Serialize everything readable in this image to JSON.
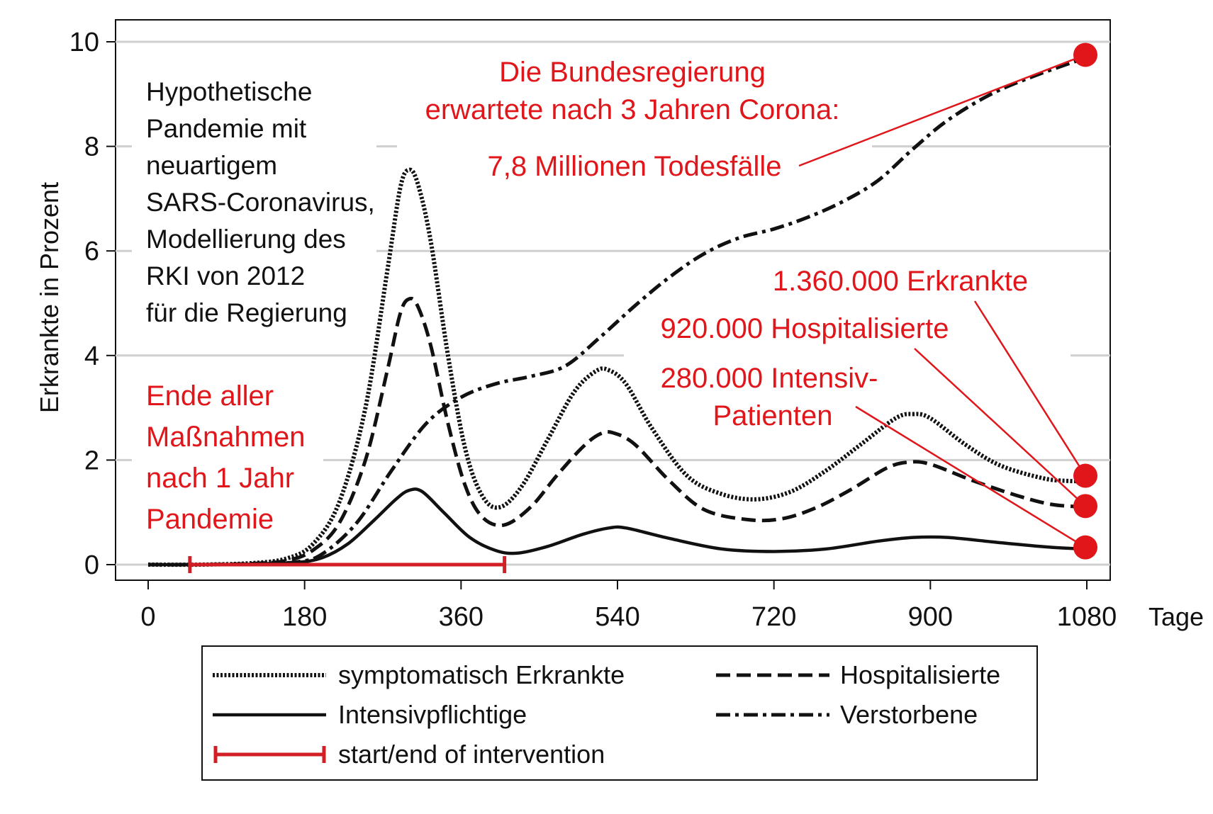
{
  "chart_data": {
    "type": "line",
    "ylabel": "Erkrankte in Prozent",
    "xlabel": "Tage",
    "xlim": [
      0,
      1080
    ],
    "ylim": [
      0,
      10
    ],
    "xticks": [
      "0",
      "180",
      "360",
      "540",
      "720",
      "900",
      "1080"
    ],
    "yticks": [
      "0",
      "2",
      "4",
      "6",
      "8",
      "10"
    ],
    "grid": "horizontal",
    "legend_position": "bottom",
    "series": [
      {
        "name": "symptomatisch Erkrankte",
        "style": "dotted",
        "color": "#111111",
        "points": [
          [
            0,
            0
          ],
          [
            60,
            0
          ],
          [
            120,
            0.03
          ],
          [
            160,
            0.12
          ],
          [
            190,
            0.4
          ],
          [
            220,
            1.2
          ],
          [
            250,
            3.0
          ],
          [
            275,
            5.6
          ],
          [
            290,
            7.2
          ],
          [
            300,
            7.55
          ],
          [
            310,
            7.3
          ],
          [
            325,
            6.2
          ],
          [
            345,
            4.0
          ],
          [
            365,
            2.2
          ],
          [
            385,
            1.3
          ],
          [
            405,
            1.1
          ],
          [
            430,
            1.5
          ],
          [
            460,
            2.4
          ],
          [
            490,
            3.3
          ],
          [
            515,
            3.7
          ],
          [
            530,
            3.72
          ],
          [
            550,
            3.45
          ],
          [
            580,
            2.6
          ],
          [
            620,
            1.7
          ],
          [
            660,
            1.35
          ],
          [
            700,
            1.25
          ],
          [
            740,
            1.4
          ],
          [
            780,
            1.8
          ],
          [
            820,
            2.3
          ],
          [
            860,
            2.8
          ],
          [
            880,
            2.88
          ],
          [
            900,
            2.8
          ],
          [
            940,
            2.3
          ],
          [
            980,
            1.9
          ],
          [
            1030,
            1.65
          ],
          [
            1060,
            1.6
          ],
          [
            1080,
            1.6
          ]
        ]
      },
      {
        "name": "Hospitalisierte",
        "style": "dashed",
        "color": "#111111",
        "points": [
          [
            0,
            0
          ],
          [
            60,
            0
          ],
          [
            120,
            0.02
          ],
          [
            160,
            0.08
          ],
          [
            190,
            0.28
          ],
          [
            220,
            0.8
          ],
          [
            250,
            2.0
          ],
          [
            275,
            3.7
          ],
          [
            290,
            4.8
          ],
          [
            300,
            5.08
          ],
          [
            310,
            4.95
          ],
          [
            325,
            4.2
          ],
          [
            345,
            2.7
          ],
          [
            365,
            1.5
          ],
          [
            385,
            0.9
          ],
          [
            410,
            0.76
          ],
          [
            440,
            1.1
          ],
          [
            470,
            1.7
          ],
          [
            500,
            2.25
          ],
          [
            520,
            2.5
          ],
          [
            535,
            2.52
          ],
          [
            560,
            2.3
          ],
          [
            600,
            1.6
          ],
          [
            640,
            1.05
          ],
          [
            690,
            0.86
          ],
          [
            730,
            0.88
          ],
          [
            770,
            1.1
          ],
          [
            810,
            1.45
          ],
          [
            850,
            1.85
          ],
          [
            875,
            1.96
          ],
          [
            900,
            1.92
          ],
          [
            950,
            1.6
          ],
          [
            1000,
            1.32
          ],
          [
            1040,
            1.15
          ],
          [
            1080,
            1.1
          ]
        ]
      },
      {
        "name": "Intensivpflichtige",
        "style": "solid",
        "color": "#111111",
        "points": [
          [
            0,
            0
          ],
          [
            60,
            0
          ],
          [
            120,
            0.01
          ],
          [
            170,
            0.04
          ],
          [
            200,
            0.13
          ],
          [
            230,
            0.4
          ],
          [
            260,
            0.85
          ],
          [
            285,
            1.25
          ],
          [
            300,
            1.42
          ],
          [
            315,
            1.4
          ],
          [
            340,
            1.0
          ],
          [
            370,
            0.52
          ],
          [
            400,
            0.27
          ],
          [
            425,
            0.22
          ],
          [
            460,
            0.35
          ],
          [
            500,
            0.58
          ],
          [
            530,
            0.7
          ],
          [
            550,
            0.7
          ],
          [
            600,
            0.5
          ],
          [
            660,
            0.3
          ],
          [
            720,
            0.25
          ],
          [
            780,
            0.3
          ],
          [
            840,
            0.45
          ],
          [
            880,
            0.52
          ],
          [
            920,
            0.52
          ],
          [
            980,
            0.42
          ],
          [
            1040,
            0.33
          ],
          [
            1080,
            0.3
          ]
        ]
      },
      {
        "name": "Verstorbene",
        "style": "dashdot",
        "color": "#111111",
        "points": [
          [
            0,
            0
          ],
          [
            60,
            0
          ],
          [
            120,
            0.01
          ],
          [
            170,
            0.05
          ],
          [
            200,
            0.2
          ],
          [
            240,
            0.8
          ],
          [
            280,
            1.8
          ],
          [
            320,
            2.7
          ],
          [
            360,
            3.2
          ],
          [
            400,
            3.46
          ],
          [
            440,
            3.6
          ],
          [
            480,
            3.8
          ],
          [
            520,
            4.35
          ],
          [
            560,
            4.95
          ],
          [
            600,
            5.5
          ],
          [
            640,
            5.95
          ],
          [
            680,
            6.25
          ],
          [
            720,
            6.42
          ],
          [
            760,
            6.65
          ],
          [
            800,
            6.95
          ],
          [
            840,
            7.35
          ],
          [
            880,
            7.95
          ],
          [
            920,
            8.5
          ],
          [
            970,
            9.0
          ],
          [
            1020,
            9.35
          ],
          [
            1080,
            9.7
          ]
        ]
      }
    ],
    "intervention": {
      "name": "start/end of intervention",
      "color": "#d21f26",
      "start": 48,
      "end": 410
    },
    "endpoints": [
      {
        "x": 1080,
        "y": 9.75,
        "color": "#e0161b"
      },
      {
        "x": 1080,
        "y": 1.7,
        "color": "#e0161b"
      },
      {
        "x": 1080,
        "y": 1.12,
        "color": "#e0161b"
      },
      {
        "x": 1080,
        "y": 0.33,
        "color": "#e0161b"
      }
    ],
    "annotations": {
      "model_note": [
        "Hypothetische",
        "Pandemie mit",
        "neuartigem",
        "SARS-Coronavirus,",
        "Modellierung des",
        "RKI von 2012",
        "für die Regierung"
      ],
      "end_measures": [
        "Ende aller",
        "Maßnahmen",
        "nach 1 Jahr",
        "Pandemie"
      ],
      "government_line1": "Die Bundesregierung",
      "government_line2": "erwartete nach 3 Jahren Corona:",
      "deaths": "7,8 Millionen Todesfälle",
      "sick": "1.360.000 Erkrankte",
      "hospitalized": "920.000 Hospitalisierte",
      "icu_line1": "280.000 Intensiv-",
      "icu_line2": "Patienten"
    },
    "legend": [
      {
        "label": "symptomatisch Erkrankte",
        "style": "dotted"
      },
      {
        "label": "Hospitalisierte",
        "style": "dashed"
      },
      {
        "label": "Intensivpflichtige",
        "style": "solid"
      },
      {
        "label": "Verstorbene",
        "style": "dashdot"
      },
      {
        "label": "start/end of intervention",
        "style": "range"
      }
    ]
  }
}
